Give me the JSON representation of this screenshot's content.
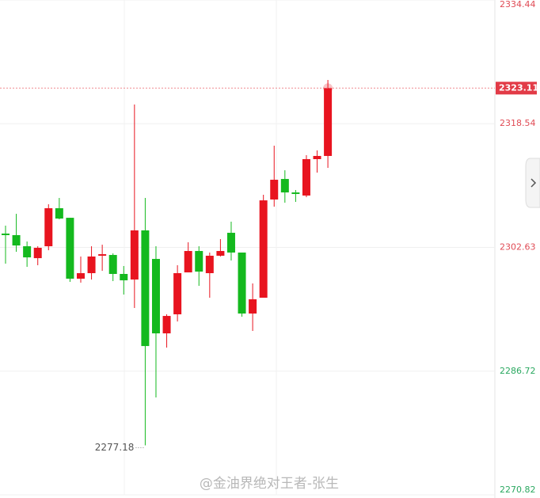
{
  "chart_data": {
    "type": "candlestick",
    "open": [
      2304.41,
      2304.21,
      2302.78,
      2301.25,
      2302.78,
      2307.67,
      2306.44,
      2298.61,
      2299.32,
      2301.56,
      2301.66,
      2299.22,
      2298.5,
      2304.82,
      2301.15,
      2291.58,
      2294.03,
      2299.42,
      2302.17,
      2299.32,
      2301.56,
      2304.51,
      2301.97,
      2294.13,
      2296.16,
      2308.79,
      2311.43,
      2309.7,
      2309.3,
      2313.98,
      2314.39
    ],
    "high": [
      2305.43,
      2306.95,
      2303.39,
      2302.78,
      2308.18,
      2308.99,
      2306.44,
      2301.46,
      2302.78,
      2302.98,
      2301.86,
      2300.24,
      2321.0,
      2308.99,
      2302.78,
      2294.03,
      2300.34,
      2303.29,
      2302.78,
      2301.97,
      2303.7,
      2305.94,
      2301.97,
      2298.0,
      2309.4,
      2315.71,
      2312.55,
      2310.01,
      2314.49,
      2315.1,
      2324.16
    ],
    "low": [
      2300.54,
      2302.07,
      2300.13,
      2300.34,
      2302.27,
      2306.24,
      2298.2,
      2298.1,
      2298.5,
      2299.62,
      2298.3,
      2296.57,
      2294.84,
      2277.18,
      2283.34,
      2289.75,
      2293.11,
      2299.42,
      2297.69,
      2296.16,
      2301.46,
      2300.95,
      2293.72,
      2291.89,
      2296.16,
      2307.87,
      2308.38,
      2308.48,
      2309.09,
      2312.25,
      2312.86
    ],
    "close": [
      2304.21,
      2302.88,
      2301.35,
      2302.58,
      2307.67,
      2306.34,
      2298.61,
      2299.32,
      2301.46,
      2301.76,
      2299.22,
      2298.4,
      2304.82,
      2289.95,
      2291.58,
      2293.82,
      2299.32,
      2302.17,
      2299.52,
      2301.56,
      2302.17,
      2301.97,
      2294.13,
      2295.96,
      2308.68,
      2311.33,
      2309.7,
      2309.5,
      2313.98,
      2314.39,
      2323.11
    ],
    "up_color": "#e8141f",
    "down_color": "#14b91e",
    "ylim": [
      2270.82,
      2334.44
    ],
    "yticks": [
      2334.44,
      2318.54,
      2302.63,
      2286.72,
      2270.82
    ],
    "ytick_colors": [
      "#e04b55",
      "#e04b55",
      "#e04b55",
      "#2aa860",
      "#2aa860"
    ],
    "grid": true,
    "last_price": 2323.11,
    "min_label": 2277.18,
    "watermark": "@金油界绝对王者-张生"
  }
}
